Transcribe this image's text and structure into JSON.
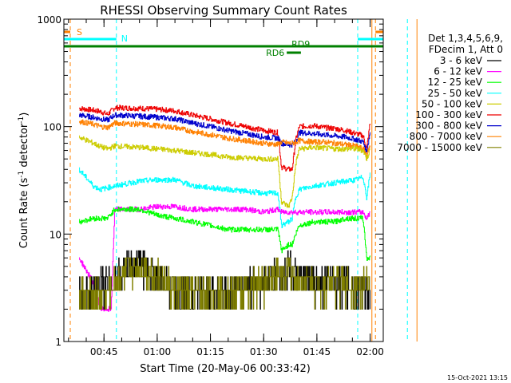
{
  "page": {
    "background": "#ffffff",
    "footer_date": "15-Oct-2021 13:15"
  },
  "chart_data": {
    "type": "line",
    "title": "RHESSI Observing Summary Count Rates",
    "xlabel": "Start Time (20-May-06 00:33:42)",
    "ylabel_main": "Count Rate (s",
    "ylabel_sup1": "-1",
    "ylabel_mid": " detector",
    "ylabel_sup2": "-1",
    "ylabel_end": ")",
    "y_scale": "log",
    "ylim": [
      1,
      1000
    ],
    "xlim_minutes": [
      33.7,
      123.7
    ],
    "grid": false,
    "x_ticks": [
      {
        "minute": 45,
        "label": "00:45"
      },
      {
        "minute": 60,
        "label": "01:00"
      },
      {
        "minute": 75,
        "label": "01:15"
      },
      {
        "minute": 90,
        "label": "01:30"
      },
      {
        "minute": 105,
        "label": "01:45"
      },
      {
        "minute": 120,
        "label": "02:00"
      }
    ],
    "y_ticks": [
      {
        "value": 1,
        "label": "1"
      },
      {
        "value": 10,
        "label": "10"
      },
      {
        "value": 100,
        "label": "100"
      },
      {
        "value": 1000,
        "label": "1000"
      }
    ],
    "legend": {
      "placement": "right",
      "header_1": "Det 1,3,4,5,6,9,",
      "header_2": "FDecim 1, Att 0",
      "entries": [
        {
          "label": "3 - 6 keV",
          "color": "#000000"
        },
        {
          "label": "6 - 12 keV",
          "color": "#ff00ff"
        },
        {
          "label": "12 - 25 keV",
          "color": "#00ff00"
        },
        {
          "label": "25 - 50 keV",
          "color": "#00ffff"
        },
        {
          "label": "50 - 100 keV",
          "color": "#cccc00"
        },
        {
          "label": "100 - 300 keV",
          "color": "#ee0000"
        },
        {
          "label": "300 - 800 keV",
          "color": "#0000cc"
        },
        {
          "label": "800 - 7000 keV",
          "color": "#ff8000"
        },
        {
          "label": "7000 - 15000 keV",
          "color": "#808000"
        }
      ]
    },
    "flags": {
      "saa_label": "S",
      "night_label": "N",
      "rd6_label": "RD6",
      "rd9_label": "RD9",
      "saa_color": "#ff8000",
      "night_color": "#00ffff",
      "rd_color": "#008000",
      "saa_intervals": [
        [
          33.7,
          35.5
        ],
        [
          121.5,
          130.5
        ]
      ],
      "night_intervals": [
        [
          33.7,
          48.5
        ],
        [
          116.5,
          130.5
        ]
      ],
      "rd9_interval": [
        33.7,
        133.7
      ],
      "rd6_interval": [
        96.5,
        100.5
      ],
      "night_lines": [
        48.5,
        116.5
      ],
      "saa_lines": [
        35.5,
        121.5
      ],
      "extra_lines": [
        {
          "minute": 120.5,
          "color": "#ff8000"
        },
        {
          "minute": 130.5,
          "color": "#00ffff"
        },
        {
          "minute": 133.2,
          "color": "#ff8000"
        }
      ]
    },
    "series": [
      {
        "band": "100 - 300 keV",
        "color": "#ee0000",
        "points": [
          [
            38,
            148
          ],
          [
            42,
            142
          ],
          [
            44,
            138
          ],
          [
            46,
            130
          ],
          [
            48,
            150
          ],
          [
            55,
            148
          ],
          [
            60,
            145
          ],
          [
            65,
            140
          ],
          [
            70,
            128
          ],
          [
            75,
            118
          ],
          [
            80,
            108
          ],
          [
            85,
            100
          ],
          [
            90,
            92
          ],
          [
            94,
            88
          ],
          [
            95,
            42
          ],
          [
            97,
            40
          ],
          [
            98,
            40
          ],
          [
            99,
            75
          ],
          [
            100,
            100
          ],
          [
            104,
            102
          ],
          [
            107,
            98
          ],
          [
            110,
            96
          ],
          [
            113,
            92
          ],
          [
            116,
            86
          ],
          [
            118,
            82
          ],
          [
            119,
            62
          ],
          [
            120,
            110
          ]
        ]
      },
      {
        "band": "300 - 800 keV",
        "color": "#0000cc",
        "points": [
          [
            38,
            128
          ],
          [
            42,
            122
          ],
          [
            44,
            118
          ],
          [
            46,
            115
          ],
          [
            48,
            128
          ],
          [
            55,
            125
          ],
          [
            60,
            122
          ],
          [
            65,
            118
          ],
          [
            70,
            108
          ],
          [
            75,
            100
          ],
          [
            80,
            92
          ],
          [
            85,
            86
          ],
          [
            90,
            80
          ],
          [
            94,
            78
          ],
          [
            95,
            70
          ],
          [
            97,
            68
          ],
          [
            98,
            68
          ],
          [
            99,
            72
          ],
          [
            100,
            88
          ],
          [
            104,
            86
          ],
          [
            107,
            84
          ],
          [
            110,
            82
          ],
          [
            113,
            80
          ],
          [
            116,
            76
          ],
          [
            118,
            72
          ],
          [
            119,
            58
          ],
          [
            120,
            90
          ]
        ]
      },
      {
        "band": "800 - 7000 keV",
        "color": "#ff8000",
        "points": [
          [
            38,
            112
          ],
          [
            42,
            105
          ],
          [
            44,
            100
          ],
          [
            46,
            98
          ],
          [
            48,
            108
          ],
          [
            55,
            105
          ],
          [
            60,
            102
          ],
          [
            65,
            98
          ],
          [
            70,
            90
          ],
          [
            75,
            84
          ],
          [
            80,
            78
          ],
          [
            85,
            74
          ],
          [
            90,
            70
          ],
          [
            94,
            68
          ],
          [
            95,
            72
          ],
          [
            97,
            70
          ],
          [
            98,
            70
          ],
          [
            99,
            72
          ],
          [
            100,
            74
          ],
          [
            104,
            72
          ],
          [
            107,
            72
          ],
          [
            110,
            70
          ],
          [
            113,
            68
          ],
          [
            116,
            66
          ],
          [
            118,
            62
          ],
          [
            119,
            55
          ],
          [
            120,
            66
          ]
        ]
      },
      {
        "band": "50 - 100 keV",
        "color": "#cccc00",
        "points": [
          [
            38,
            80
          ],
          [
            42,
            70
          ],
          [
            44,
            65
          ],
          [
            46,
            62
          ],
          [
            48,
            66
          ],
          [
            55,
            64
          ],
          [
            60,
            62
          ],
          [
            65,
            60
          ],
          [
            70,
            57
          ],
          [
            75,
            55
          ],
          [
            80,
            52
          ],
          [
            85,
            51
          ],
          [
            90,
            50
          ],
          [
            94,
            50
          ],
          [
            95,
            20
          ],
          [
            97,
            18
          ],
          [
            98,
            22
          ],
          [
            99,
            45
          ],
          [
            100,
            62
          ],
          [
            104,
            64
          ],
          [
            107,
            63
          ],
          [
            110,
            62
          ],
          [
            113,
            62
          ],
          [
            116,
            62
          ],
          [
            118,
            60
          ],
          [
            119,
            50
          ],
          [
            120,
            62
          ]
        ]
      },
      {
        "band": "25 - 50 keV",
        "color": "#00ffff",
        "points": [
          [
            38,
            40
          ],
          [
            42,
            28
          ],
          [
            44,
            26
          ],
          [
            46,
            27
          ],
          [
            48,
            28
          ],
          [
            55,
            31
          ],
          [
            60,
            32
          ],
          [
            65,
            32
          ],
          [
            70,
            28
          ],
          [
            75,
            27
          ],
          [
            80,
            26
          ],
          [
            85,
            25
          ],
          [
            90,
            24
          ],
          [
            94,
            24
          ],
          [
            95,
            12
          ],
          [
            97,
            13
          ],
          [
            98,
            14
          ],
          [
            99,
            22
          ],
          [
            100,
            26
          ],
          [
            104,
            28
          ],
          [
            107,
            29
          ],
          [
            110,
            30
          ],
          [
            113,
            31
          ],
          [
            116,
            32
          ],
          [
            118,
            34
          ],
          [
            119,
            22
          ],
          [
            120,
            37
          ]
        ]
      },
      {
        "band": "6 - 12 keV",
        "color": "#ff00ff",
        "points": [
          [
            38,
            6
          ],
          [
            42,
            3.5
          ],
          [
            44,
            2
          ],
          [
            46,
            2
          ],
          [
            47,
            2
          ],
          [
            48,
            17
          ],
          [
            55,
            17
          ],
          [
            60,
            18
          ],
          [
            65,
            18
          ],
          [
            70,
            17
          ],
          [
            75,
            17
          ],
          [
            80,
            17
          ],
          [
            85,
            17
          ],
          [
            90,
            16
          ],
          [
            94,
            17
          ],
          [
            95,
            16
          ],
          [
            97,
            16
          ],
          [
            98,
            16
          ],
          [
            100,
            16
          ],
          [
            104,
            16
          ],
          [
            107,
            16
          ],
          [
            110,
            16
          ],
          [
            113,
            16
          ],
          [
            116,
            16
          ],
          [
            118,
            16
          ],
          [
            119,
            14
          ],
          [
            120,
            16
          ]
        ]
      },
      {
        "band": "12 - 25 keV",
        "color": "#00ff00",
        "points": [
          [
            38,
            13
          ],
          [
            42,
            14
          ],
          [
            44,
            14
          ],
          [
            46,
            14
          ],
          [
            48,
            17
          ],
          [
            55,
            17
          ],
          [
            60,
            15
          ],
          [
            65,
            14
          ],
          [
            70,
            13
          ],
          [
            75,
            12
          ],
          [
            80,
            11
          ],
          [
            85,
            11
          ],
          [
            90,
            11
          ],
          [
            94,
            11
          ],
          [
            95,
            7
          ],
          [
            97,
            8
          ],
          [
            98,
            8
          ],
          [
            99,
            10
          ],
          [
            100,
            12
          ],
          [
            104,
            13
          ],
          [
            107,
            13
          ],
          [
            110,
            13
          ],
          [
            113,
            14
          ],
          [
            116,
            14
          ],
          [
            118,
            14
          ],
          [
            119,
            6
          ],
          [
            120,
            6
          ]
        ]
      },
      {
        "band": "3 - 6 keV",
        "color": "#000000",
        "points": [
          [
            38,
            2.6
          ],
          [
            42,
            2.7
          ],
          [
            44,
            3.5
          ],
          [
            46,
            3.3
          ],
          [
            48,
            3.6
          ],
          [
            52,
            5.0
          ],
          [
            55,
            5.2
          ],
          [
            60,
            4.0
          ],
          [
            65,
            3.0
          ],
          [
            70,
            2.7
          ],
          [
            75,
            3.0
          ],
          [
            80,
            2.8
          ],
          [
            85,
            3.3
          ],
          [
            90,
            3.5
          ],
          [
            94,
            4.3
          ],
          [
            95,
            4.0
          ],
          [
            97,
            5.0
          ],
          [
            98,
            4.5
          ],
          [
            99,
            3.8
          ],
          [
            100,
            3.5
          ],
          [
            104,
            3.5
          ],
          [
            107,
            3.4
          ],
          [
            110,
            3.5
          ],
          [
            113,
            3.4
          ],
          [
            116,
            3.3
          ],
          [
            118,
            3.2
          ],
          [
            119,
            3.0
          ],
          [
            120,
            3.0
          ]
        ]
      },
      {
        "band": "7000 - 15000 keV",
        "color": "#808000",
        "points": [
          [
            38,
            2.7
          ],
          [
            42,
            2.6
          ],
          [
            44,
            2.7
          ],
          [
            46,
            2.7
          ],
          [
            48,
            3.4
          ],
          [
            52,
            4.6
          ],
          [
            55,
            5.0
          ],
          [
            60,
            4.0
          ],
          [
            65,
            3.0
          ],
          [
            70,
            2.7
          ],
          [
            75,
            3.0
          ],
          [
            80,
            2.8
          ],
          [
            85,
            3.2
          ],
          [
            90,
            3.5
          ],
          [
            94,
            4.3
          ],
          [
            95,
            4.0
          ],
          [
            97,
            4.6
          ],
          [
            98,
            4.3
          ],
          [
            99,
            3.8
          ],
          [
            100,
            3.5
          ],
          [
            104,
            3.5
          ],
          [
            107,
            3.4
          ],
          [
            110,
            3.5
          ],
          [
            113,
            3.4
          ],
          [
            116,
            3.3
          ],
          [
            118,
            3.2
          ],
          [
            119,
            3.2
          ],
          [
            120,
            3.3
          ]
        ]
      }
    ]
  }
}
